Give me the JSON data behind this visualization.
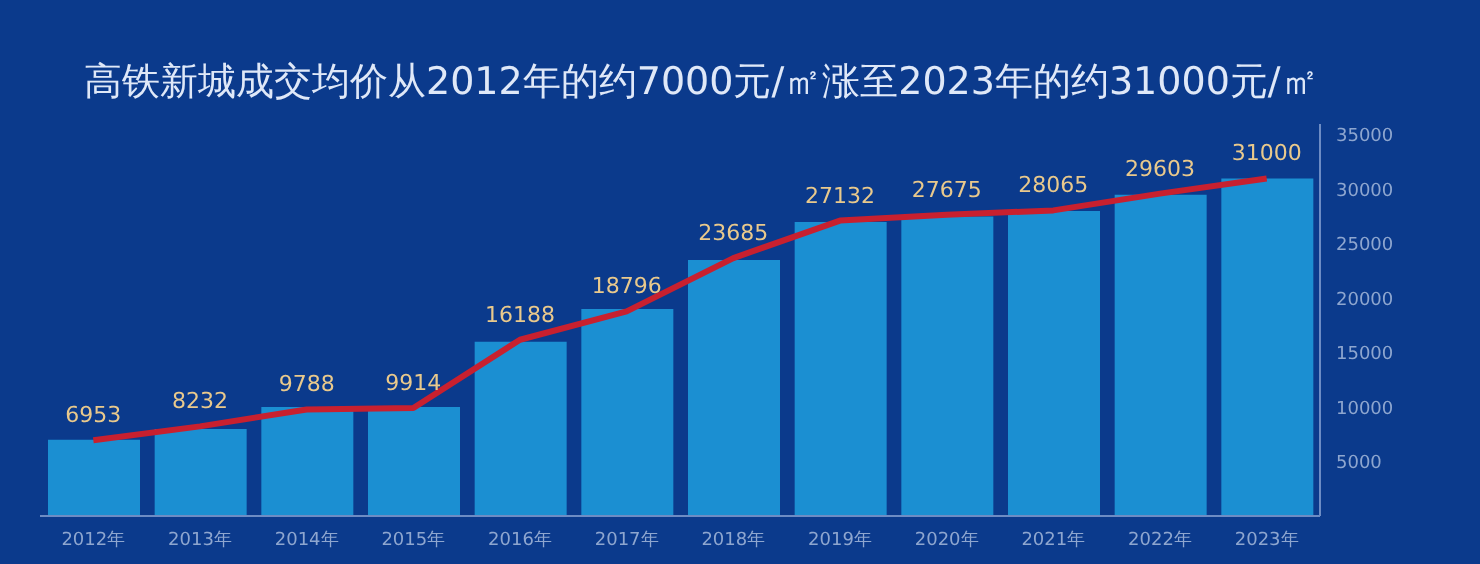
{
  "chart_data": {
    "type": "bar",
    "title": "高铁新城成交均价从2012年的约7000元/㎡涨至2023年的约31000元/㎡",
    "categories": [
      "2012年",
      "2013年",
      "2014年",
      "2015年",
      "2016年",
      "2017年",
      "2018年",
      "2019年",
      "2020年",
      "2021年",
      "2022年",
      "2023年"
    ],
    "series": [
      {
        "color": "#1b8fd2",
        "values": [
          7000,
          8000,
          10000,
          10000,
          16000,
          19000,
          23500,
          27000,
          27500,
          28000,
          29500,
          31000
        ]
      },
      {
        "type": "line",
        "color": "#c8202f",
        "values": [
          6953,
          8232,
          9788,
          9914,
          16188,
          18796,
          23685,
          27132,
          27675,
          28065,
          29603,
          31000
        ],
        "value_labels": [
          "6953",
          "8232",
          "9788",
          "9914",
          "16188",
          "18796",
          "23685",
          "27132",
          "27675",
          "28065",
          "29603",
          "31000"
        ]
      }
    ],
    "ylim": [
      0,
      36000
    ],
    "yticks": [
      5000,
      10000,
      15000,
      20000,
      25000,
      30000,
      35000
    ],
    "grid": false,
    "legend": false,
    "marker": "none",
    "line_style": "solid"
  }
}
